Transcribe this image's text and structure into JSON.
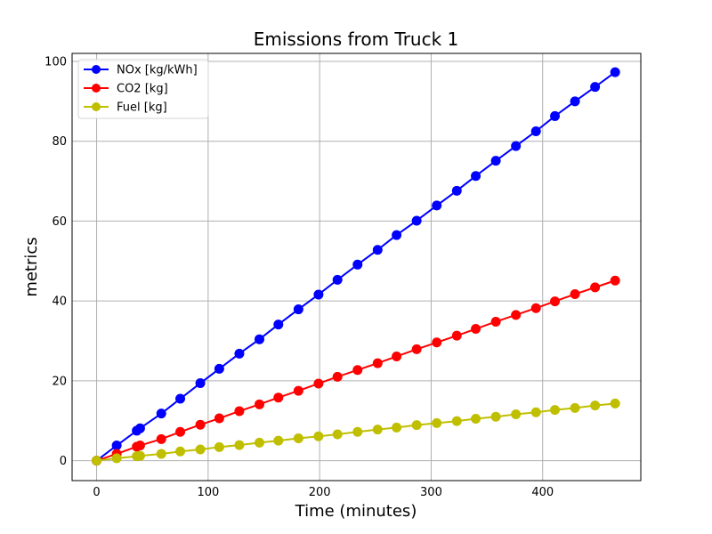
{
  "chart_data": {
    "type": "line",
    "title": "Emissions from Truck 1",
    "xlabel": "Time (minutes)",
    "ylabel": "metrics",
    "xlim": [
      -22,
      488
    ],
    "ylim": [
      -5,
      102
    ],
    "xticks": [
      0,
      100,
      200,
      300,
      400
    ],
    "yticks": [
      0,
      20,
      40,
      60,
      80,
      100
    ],
    "grid": true,
    "legend_position": "top-left",
    "x": [
      0,
      18,
      36,
      39,
      58,
      75,
      93,
      110,
      128,
      146,
      163,
      181,
      199,
      216,
      234,
      252,
      269,
      287,
      305,
      323,
      340,
      358,
      376,
      394,
      411,
      429,
      447,
      465
    ],
    "series": [
      {
        "name": "NOx [kg/kWh]",
        "color": "#0000ff",
        "values": [
          0,
          3.8,
          7.5,
          8.1,
          11.8,
          15.5,
          19.4,
          23.0,
          26.8,
          30.4,
          34.1,
          37.9,
          41.6,
          45.3,
          49.1,
          52.8,
          56.5,
          60.1,
          63.9,
          67.6,
          71.3,
          75.1,
          78.8,
          82.5,
          86.3,
          90.0,
          93.6,
          97.3
        ]
      },
      {
        "name": "CO2 [kg]",
        "color": "#ff0000",
        "values": [
          0,
          1.7,
          3.5,
          3.8,
          5.4,
          7.2,
          9.0,
          10.6,
          12.4,
          14.1,
          15.8,
          17.5,
          19.3,
          21.0,
          22.7,
          24.4,
          26.1,
          27.9,
          29.6,
          31.3,
          33.0,
          34.8,
          36.5,
          38.2,
          39.9,
          41.7,
          43.4,
          45.1
        ]
      },
      {
        "name": "Fuel [kg]",
        "color": "#bfbf00",
        "values": [
          0,
          0.6,
          1.1,
          1.2,
          1.7,
          2.3,
          2.8,
          3.4,
          3.9,
          4.5,
          5.0,
          5.6,
          6.1,
          6.6,
          7.2,
          7.8,
          8.3,
          8.9,
          9.4,
          9.9,
          10.5,
          11.0,
          11.6,
          12.1,
          12.7,
          13.2,
          13.8,
          14.3
        ]
      }
    ]
  }
}
